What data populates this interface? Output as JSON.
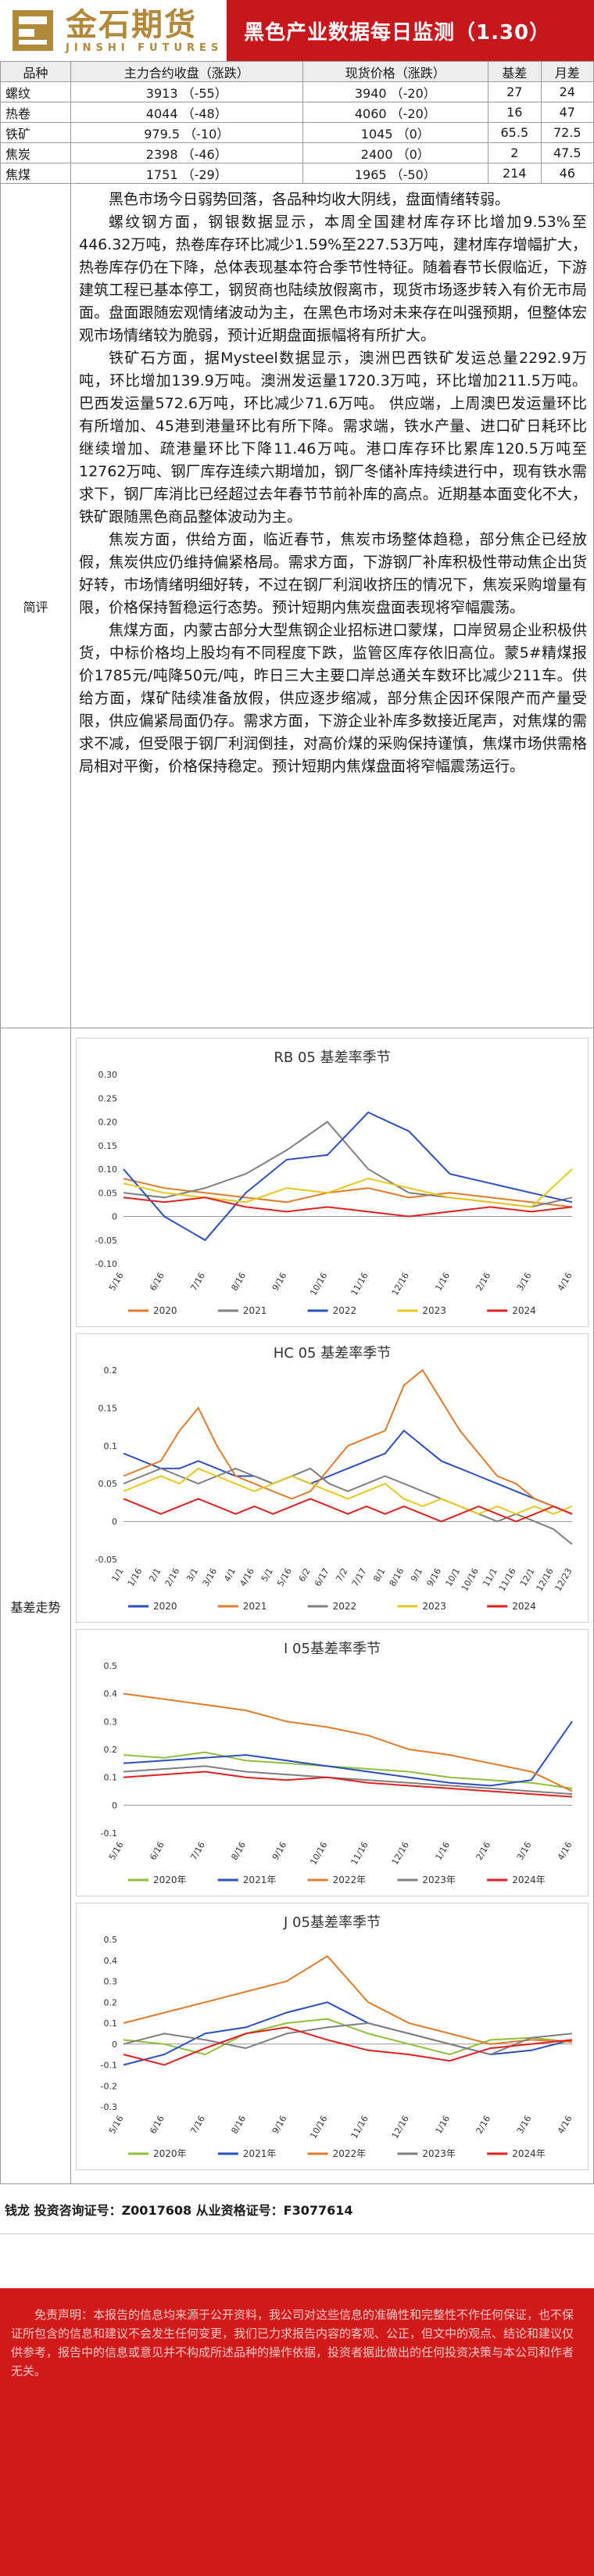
{
  "header": {
    "logo_cn": "金石期货",
    "logo_en": "JINSHI FUTURES",
    "title": "黑色产业数据每日监测（1.30）"
  },
  "table": {
    "headers": [
      "品种",
      "主力合约收盘（涨跌）",
      "现货价格（涨跌）",
      "基差",
      "月差"
    ],
    "rows": [
      [
        "螺纹",
        "3913 （-55）",
        "3940 （-20）",
        "27",
        "24"
      ],
      [
        "热卷",
        "4044 （-48）",
        "4060 （-20）",
        "16",
        "47"
      ],
      [
        "铁矿",
        "979.5 （-10）",
        "1045 （0）",
        "65.5",
        "72.5"
      ],
      [
        "焦炭",
        "2398 （-46）",
        "2400 （0）",
        "2",
        "47.5"
      ],
      [
        "焦煤",
        "1751 （-29）",
        "1965 （-50）",
        "214",
        "46"
      ]
    ]
  },
  "review": {
    "label": "简评",
    "paragraphs": [
      "黑色市场今日弱势回落，各品种均收大阴线，盘面情绪转弱。",
      "螺纹钢方面，钢银数据显示，本周全国建材库存环比增加9.53%至446.32万吨，热卷库存环比减少1.59%至227.53万吨，建材库存增幅扩大，热卷库存仍在下降，总体表现基本符合季节性特征。随着春节长假临近，下游建筑工程已基本停工，钢贸商也陆续放假离市，现货市场逐步转入有价无市局面。盘面跟随宏观情绪波动为主，在黑色市场对未来存在叫强预期，但整体宏观市场情绪较为脆弱，预计近期盘面振幅将有所扩大。",
      "铁矿石方面，据Mysteel数据显示，澳洲巴西铁矿发运总量2292.9万吨，环比增加139.9万吨。澳洲发运量1720.3万吨，环比增加211.5万吨。巴西发运量572.6万吨，环比减少71.6万吨。 供应端，上周澳巴发运量环比有所增加、45港到港量环比有所下降。需求端，铁水产量、进口矿日耗环比继续增加、疏港量环比下降11.46万吨。港口库存环比累库120.5万吨至12762万吨、钢厂库存连续六期增加，钢厂冬储补库持续进行中，现有铁水需求下，钢厂库消比已经超过去年春节节前补库的高点。近期基本面变化不大，铁矿跟随黑色商品整体波动为主。",
      "焦炭方面，供给方面，临近春节，焦炭市场整体趋稳，部分焦企已经放假，焦炭供应仍维持偏紧格局。需求方面，下游钢厂补库积极性带动焦企出货好转，市场情绪明细好转，不过在钢厂利润收挤压的情况下，焦炭采购增量有限，价格保持暂稳运行态势。预计短期内焦炭盘面表现将窄幅震荡。",
      "焦煤方面，内蒙古部分大型焦钢企业招标进口蒙煤，口岸贸易企业积极供货，中标价格均上股均有不同程度下跌，监管区库存依旧高位。蒙5#精煤报价1785元/吨降50元/吨，昨日三大主要口岸总通关车数环比减少211车。供给方面，煤矿陆续准备放假，供应逐步缩减，部分焦企因环保限产而产量受限，供应偏紧局面仍存。需求方面，下游企业补库多数接近尾声，对焦煤的需求不减，但受限于钢厂利润倒挂，对高价煤的采购保持谨慎，焦煤市场供需格局相对平衡，价格保持稳定。预计短期内焦煤盘面将窄幅震荡运行。"
    ]
  },
  "basis": {
    "label": "基差走势"
  },
  "chart_data": [
    {
      "type": "line",
      "title": "RB 05 基差率季节",
      "x": [
        "5/16",
        "6/16",
        "7/16",
        "8/16",
        "9/16",
        "10/16",
        "11/16",
        "12/16",
        "1/16",
        "2/16",
        "3/16",
        "4/16"
      ],
      "ylim": [
        -0.1,
        0.3
      ],
      "yticks": [
        "0.30",
        "0.25",
        "0.20",
        "0.15",
        "0.10",
        "0.05",
        "0",
        "-0.05",
        "-0.10"
      ],
      "grid": false,
      "legend": "bottom",
      "series": [
        {
          "name": "2020",
          "color": "#e07b2a",
          "values": [
            0.08,
            0.06,
            0.05,
            0.04,
            0.03,
            0.05,
            0.06,
            0.04,
            0.05,
            0.04,
            0.03,
            0.02
          ]
        },
        {
          "name": "2021",
          "color": "#7f7f7f",
          "values": [
            0.05,
            0.04,
            0.06,
            0.09,
            0.14,
            0.2,
            0.1,
            0.05,
            0.04,
            0.03,
            0.02,
            0.04
          ]
        },
        {
          "name": "2022",
          "color": "#2a4fbd",
          "values": [
            0.1,
            0.0,
            -0.05,
            0.05,
            0.12,
            0.13,
            0.22,
            0.18,
            0.09,
            0.07,
            0.05,
            0.03
          ]
        },
        {
          "name": "2023",
          "color": "#e6c81d",
          "values": [
            0.07,
            0.05,
            0.04,
            0.03,
            0.06,
            0.05,
            0.08,
            0.06,
            0.04,
            0.03,
            0.02,
            0.1
          ]
        },
        {
          "name": "2024",
          "color": "#e01f1f",
          "values": [
            0.04,
            0.03,
            0.04,
            0.02,
            0.01,
            0.02,
            0.01,
            0.0,
            0.01,
            0.02,
            0.01,
            0.02
          ]
        }
      ]
    },
    {
      "type": "line",
      "title": "HC 05 基差率季节",
      "x": [
        "1/1",
        "1/16",
        "2/1",
        "2/16",
        "3/1",
        "3/16",
        "4/1",
        "4/16",
        "5/1",
        "5/16",
        "6/2",
        "6/17",
        "7/2",
        "7/17",
        "8/1",
        "8/16",
        "9/1",
        "9/16",
        "10/1",
        "10/16",
        "11/1",
        "11/16",
        "12/1",
        "12/16",
        "12/23"
      ],
      "ylim": [
        -0.05,
        0.2
      ],
      "yticks": [
        "0.2",
        "0.15",
        "0.1",
        "0.05",
        "0",
        "-0.05"
      ],
      "grid": false,
      "legend": "bottom",
      "series": [
        {
          "name": "2020",
          "color": "#2a4fbd",
          "values": [
            0.09,
            0.08,
            0.07,
            0.07,
            0.08,
            0.07,
            0.06,
            0.06,
            0.05,
            0.06,
            0.05,
            0.06,
            0.07,
            0.08,
            0.09,
            0.12,
            0.1,
            0.08,
            0.07,
            0.06,
            0.05,
            0.04,
            0.03,
            0.02,
            0.01
          ]
        },
        {
          "name": "2021",
          "color": "#e07b2a",
          "values": [
            0.06,
            0.07,
            0.08,
            0.12,
            0.15,
            0.1,
            0.06,
            0.05,
            0.04,
            0.03,
            0.04,
            0.07,
            0.1,
            0.11,
            0.12,
            0.18,
            0.2,
            0.16,
            0.12,
            0.09,
            0.06,
            0.05,
            0.03,
            0.02,
            0.01
          ]
        },
        {
          "name": "2022",
          "color": "#7f7f7f",
          "values": [
            0.05,
            0.06,
            0.07,
            0.06,
            0.05,
            0.06,
            0.07,
            0.06,
            0.05,
            0.06,
            0.07,
            0.05,
            0.04,
            0.05,
            0.06,
            0.05,
            0.04,
            0.03,
            0.02,
            0.01,
            0.0,
            0.01,
            0.0,
            -0.01,
            -0.03
          ]
        },
        {
          "name": "2023",
          "color": "#e6c81d",
          "values": [
            0.04,
            0.05,
            0.06,
            0.05,
            0.07,
            0.06,
            0.05,
            0.04,
            0.05,
            0.06,
            0.05,
            0.04,
            0.03,
            0.04,
            0.05,
            0.03,
            0.02,
            0.03,
            0.02,
            0.01,
            0.02,
            0.01,
            0.02,
            0.01,
            0.02
          ]
        },
        {
          "name": "2024",
          "color": "#e01f1f",
          "values": [
            0.03,
            0.02,
            0.01,
            0.02,
            0.03,
            0.02,
            0.01,
            0.02,
            0.01,
            0.02,
            0.03,
            0.02,
            0.01,
            0.02,
            0.01,
            0.02,
            0.01,
            0.0,
            0.01,
            0.02,
            0.01,
            0.0,
            0.01,
            0.02,
            0.01
          ]
        }
      ]
    },
    {
      "type": "line",
      "title": "I 05基差率季节",
      "x": [
        "5/16",
        "6/16",
        "7/16",
        "8/16",
        "9/16",
        "10/16",
        "11/16",
        "12/16",
        "1/16",
        "2/16",
        "3/16",
        "4/16"
      ],
      "ylim": [
        -0.1,
        0.5
      ],
      "yticks": [
        "0.5",
        "0.4",
        "0.3",
        "0.2",
        "0.1",
        "0",
        "-0.1"
      ],
      "grid": false,
      "legend": "bottom",
      "series": [
        {
          "name": "2020年",
          "color": "#8fbf3a",
          "values": [
            0.18,
            0.17,
            0.19,
            0.16,
            0.15,
            0.14,
            0.13,
            0.12,
            0.1,
            0.09,
            0.08,
            0.06
          ]
        },
        {
          "name": "2021年",
          "color": "#2a4fbd",
          "values": [
            0.15,
            0.16,
            0.17,
            0.18,
            0.16,
            0.14,
            0.12,
            0.1,
            0.08,
            0.07,
            0.09,
            0.3
          ]
        },
        {
          "name": "2022年",
          "color": "#e07b2a",
          "values": [
            0.4,
            0.38,
            0.36,
            0.34,
            0.3,
            0.28,
            0.25,
            0.2,
            0.18,
            0.15,
            0.12,
            0.05
          ]
        },
        {
          "name": "2023年",
          "color": "#7f7f7f",
          "values": [
            0.12,
            0.13,
            0.14,
            0.12,
            0.11,
            0.1,
            0.09,
            0.08,
            0.07,
            0.06,
            0.05,
            0.04
          ]
        },
        {
          "name": "2024年",
          "color": "#e01f1f",
          "values": [
            0.1,
            0.11,
            0.12,
            0.1,
            0.09,
            0.1,
            0.08,
            0.07,
            0.06,
            0.05,
            0.04,
            0.03
          ]
        }
      ]
    },
    {
      "type": "line",
      "title": "J 05基差率季节",
      "x": [
        "5/16",
        "6/16",
        "7/16",
        "8/16",
        "9/16",
        "10/16",
        "11/16",
        "12/16",
        "1/16",
        "2/16",
        "3/16",
        "4/16"
      ],
      "ylim": [
        -0.3,
        0.5
      ],
      "yticks": [
        "0.5",
        "0.4",
        "0.3",
        "0.2",
        "0.1",
        "0",
        "-0.1",
        "-0.2",
        "-0.3"
      ],
      "grid": false,
      "legend": "bottom",
      "series": [
        {
          "name": "2020年",
          "color": "#8fbf3a",
          "values": [
            0.02,
            0.0,
            -0.05,
            0.05,
            0.1,
            0.12,
            0.05,
            0.0,
            -0.05,
            0.02,
            0.03,
            0.01
          ]
        },
        {
          "name": "2021年",
          "color": "#2a4fbd",
          "values": [
            -0.1,
            -0.05,
            0.05,
            0.08,
            0.15,
            0.2,
            0.1,
            0.05,
            0.0,
            -0.05,
            -0.03,
            0.02
          ]
        },
        {
          "name": "2022年",
          "color": "#e07b2a",
          "values": [
            0.1,
            0.15,
            0.2,
            0.25,
            0.3,
            0.42,
            0.2,
            0.1,
            0.05,
            0.0,
            0.02,
            0.01
          ]
        },
        {
          "name": "2023年",
          "color": "#7f7f7f",
          "values": [
            0.0,
            0.05,
            0.02,
            -0.02,
            0.05,
            0.08,
            0.1,
            0.05,
            0.0,
            -0.05,
            0.03,
            0.05
          ]
        },
        {
          "name": "2024年",
          "color": "#e01f1f",
          "values": [
            -0.05,
            -0.1,
            -0.02,
            0.05,
            0.08,
            0.02,
            -0.03,
            -0.05,
            -0.08,
            -0.02,
            0.0,
            0.02
          ]
        }
      ]
    }
  ],
  "analyst": {
    "text": "钱龙  投资咨询证号：Z0017608  从业资格证号：F3077614"
  },
  "disclaimer": {
    "text": "免责声明：本报告的信息均来源于公开资料，我公司对这些信息的准确性和完整性不作任何保证，也不保证所包含的信息和建议不会发生任何变更，我们已力求报告内容的客观、公正，但文中的观点、结论和建议仅供参考，报告中的信息或意见并不构成所述品种的操作依据，投资者据此做出的任何投资决策与本公司和作者无关。"
  },
  "colors": {
    "brand_red": "#c8161d",
    "logo_gold": "#b08a3a"
  }
}
